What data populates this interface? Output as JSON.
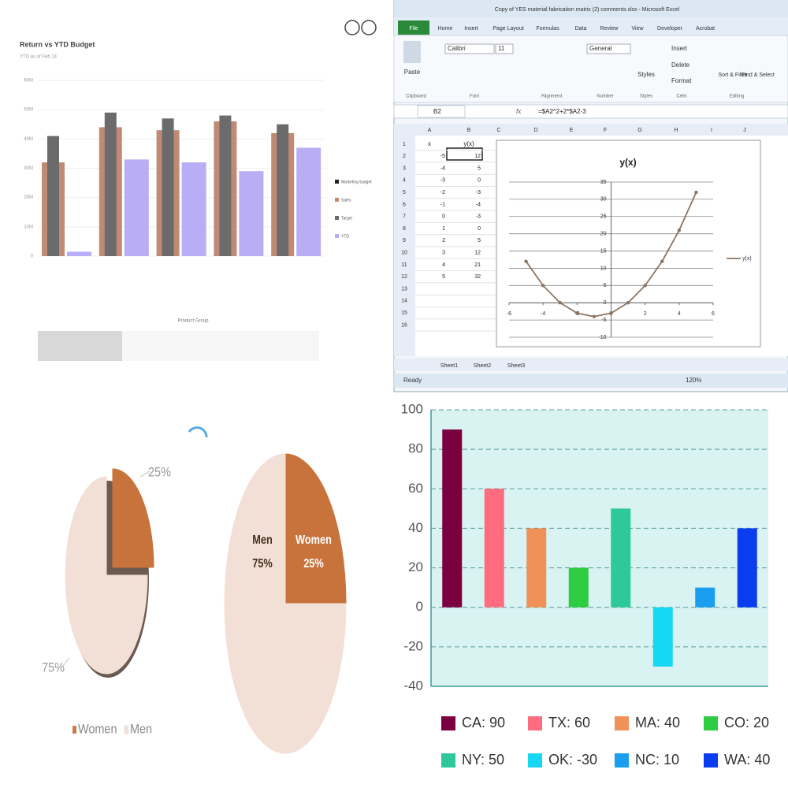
{
  "chart_data": [
    {
      "type": "bar",
      "title": "Return vs YTD Budget",
      "subtitle": "YTD as of Feb 14",
      "categories": [
        null,
        null,
        null,
        null,
        null
      ],
      "series": [
        {
          "name": "Marketing budget",
          "color": "#222222",
          "values": [
            null,
            null,
            null,
            null,
            null
          ]
        },
        {
          "name": "Sales",
          "color": "#c08a74",
          "values": [
            32000000,
            44000000,
            43000000,
            46000000,
            42000000
          ]
        },
        {
          "name": "Target",
          "color": "#6b6b6b",
          "values": [
            41000000,
            49000000,
            47000000,
            48000000,
            45000000
          ]
        },
        {
          "name": "YTD",
          "color": "#b9adf5",
          "values": [
            1500000,
            33000000,
            32000000,
            29000000,
            37000000
          ]
        }
      ],
      "x_label": "Product Group",
      "ylim": [
        0,
        60000000
      ],
      "yticks": [
        0,
        {
          "value": 10000000,
          "label": "10M"
        },
        {
          "value": 20000000,
          "label": "20M"
        },
        {
          "value": 30000000,
          "label": "30M"
        },
        {
          "value": 40000000,
          "label": "40M"
        },
        {
          "value": 50000000,
          "label": "50M"
        },
        {
          "value": 60000000,
          "label": "60M"
        }
      ],
      "grid": true
    },
    {
      "type": "line",
      "title": "y(x)",
      "x": [
        -5,
        -4,
        -3,
        -2,
        -1,
        0,
        1,
        2,
        3,
        4,
        5
      ],
      "series": [
        {
          "name": "y(x)",
          "color": "#8b7560",
          "values": [
            12,
            5,
            0,
            -3,
            -4,
            -3,
            0,
            5,
            12,
            21,
            32
          ]
        }
      ],
      "xlim": [
        -6,
        6
      ],
      "xticks": [
        -6,
        -4,
        -2,
        0,
        2,
        4,
        6
      ],
      "ylim": [
        -10,
        35
      ],
      "yticks": [
        -10,
        -5,
        0,
        5,
        10,
        15,
        20,
        25,
        30,
        35
      ],
      "grid": true,
      "legend": "right"
    },
    {
      "type": "pie",
      "categories": [
        "Women",
        "Men"
      ],
      "values": [
        25,
        75
      ],
      "value_labels": [
        "25%",
        "75%"
      ],
      "colors": [
        "#c8733c",
        "#f2e0d6"
      ],
      "exploded": true,
      "legend": "bottom"
    },
    {
      "type": "pie",
      "categories": [
        "Women",
        "Men"
      ],
      "values": [
        25,
        75
      ],
      "value_labels": [
        "25%",
        "75%"
      ],
      "colors": [
        "#c8733c",
        "#f2e0d6"
      ]
    },
    {
      "type": "bar",
      "categories": [
        "CA",
        "TX",
        "MA",
        "CO",
        "NY",
        "OK",
        "NC",
        "WA"
      ],
      "values": [
        90,
        60,
        40,
        20,
        50,
        -30,
        10,
        40
      ],
      "colors": [
        "#7a0040",
        "#ff6b7f",
        "#f0915a",
        "#2ecc40",
        "#2ec99a",
        "#16d8f5",
        "#1a9ff0",
        "#0a3cf0"
      ],
      "legend_labels": [
        "CA: 90",
        "TX: 60",
        "MA: 40",
        "CO: 20",
        "NY: 50",
        "OK: -30",
        "NC: 10",
        "WA: 40"
      ],
      "ylim": [
        -40,
        100
      ],
      "yticks": [
        -40,
        -20,
        0,
        20,
        40,
        60,
        80,
        100
      ],
      "grid": true,
      "legend": "bottom"
    }
  ],
  "excel": {
    "window_title": "Copy of YES material fabrication matrix (2) comments.xlsx - Microsoft Excel",
    "tabs": [
      "File",
      "Home",
      "Insert",
      "Page Layout",
      "Formulas",
      "Data",
      "Review",
      "View",
      "Developer",
      "Acrobat"
    ],
    "ribbon": {
      "paste": "Paste",
      "font": "Calibri",
      "size": "11",
      "number_format": "General",
      "styles": "Styles",
      "insert": "Insert",
      "delete": "Delete",
      "format": "Format",
      "sort": "Sort & Filter",
      "find": "Find & Select"
    },
    "groups": [
      "Clipboard",
      "Font",
      "Alignment",
      "Number",
      "Styles",
      "Cells",
      "Editing"
    ],
    "name_box": "B2",
    "fx": "fx",
    "formula": "=$A2^2+2*$A2-3",
    "columns": [
      "A",
      "B",
      "C",
      "D",
      "E",
      "F",
      "G",
      "H",
      "I",
      "J"
    ],
    "rows": [
      1,
      2,
      3,
      4,
      5,
      6,
      7,
      8,
      9,
      10,
      11,
      12,
      13,
      14,
      15,
      16
    ],
    "a1": "x",
    "sheets": [
      "Sheet1",
      "Sheet2",
      "Sheet3"
    ],
    "status": "Ready",
    "zoom": "120%"
  }
}
